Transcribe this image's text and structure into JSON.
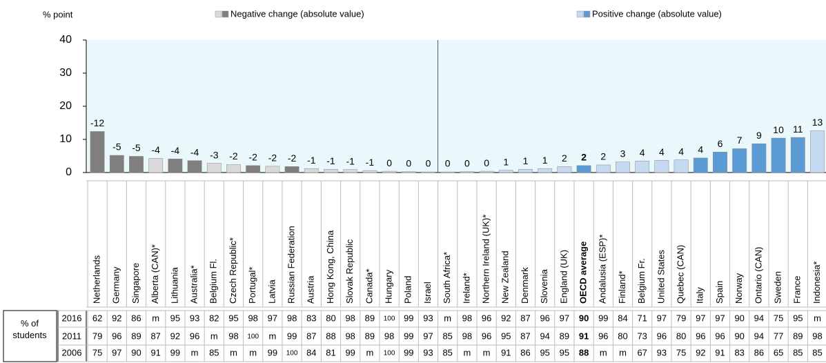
{
  "chart_data": {
    "type": "bar",
    "y_label": "% point",
    "legend": [
      {
        "name": "Negative change (absolute value)",
        "colors": [
          "#d9d9d9",
          "#7f7f7f"
        ]
      },
      {
        "name": "Positive change (absolute value)",
        "colors": [
          "#c5d9f1",
          "#5b9bd5"
        ]
      }
    ],
    "categories": [
      "Netherlands",
      "Germany",
      "Singapore",
      "Alberta (CAN)*",
      "Lithuania",
      "Australia*",
      "Belgium Fl.",
      "Czech Republic*",
      "Portugal*",
      "Latvia",
      "Russian Federation",
      "Austria",
      "Hong Kong, China",
      "Slovak Republic",
      "Canada*",
      "Hungary",
      "Poland",
      "Israel",
      "South Africa*",
      "Ireland*",
      "Northern Ireland (UK)*",
      "New Zealand",
      "Denmark",
      "Slovenia",
      "England (UK)",
      "OECD average",
      "Andalusia (ESP)*",
      "Finland*",
      "Belgium Fr.",
      "United States",
      "Quebec (CAN)",
      "Italy",
      "Spain",
      "Norway",
      "Ontario (CAN)",
      "Sweden",
      "France",
      "Indonesia*"
    ],
    "values": [
      12.4,
      5.2,
      4.9,
      4.3,
      4.1,
      3.6,
      2.8,
      2.4,
      2.1,
      1.9,
      1.8,
      1.2,
      1.0,
      0.9,
      0.6,
      0.4,
      0.3,
      0.2,
      0.2,
      0.3,
      0.4,
      0.7,
      1.0,
      1.2,
      1.8,
      2.1,
      2.3,
      3.2,
      3.5,
      3.7,
      3.8,
      4.4,
      6.2,
      7.2,
      8.7,
      10.4,
      10.6,
      12.6
    ],
    "value_labels": [
      "-12",
      "-5",
      "-5",
      "-4",
      "-4",
      "-4",
      "-3",
      "-2",
      "-2",
      "-2",
      "-2",
      "-1",
      "-1",
      "-1",
      "-1",
      "0",
      "0",
      "0",
      "0",
      "0",
      "0",
      "1",
      "1",
      "1",
      "2",
      "2",
      "2",
      "3",
      "4",
      "4",
      "4",
      "4",
      "6",
      "7",
      "9",
      "10",
      "11",
      "13"
    ],
    "colors": [
      "#7f7f7f",
      "#7f7f7f",
      "#7f7f7f",
      "#d9d9d9",
      "#7f7f7f",
      "#7f7f7f",
      "#d9d9d9",
      "#d9d9d9",
      "#7f7f7f",
      "#d9d9d9",
      "#7f7f7f",
      "#d9d9d9",
      "#d9d9d9",
      "#d9d9d9",
      "#d9d9d9",
      "#d9d9d9",
      "#d9d9d9",
      "#d9d9d9",
      "#c5d9f1",
      "#c5d9f1",
      "#c5d9f1",
      "#c5d9f1",
      "#c5d9f1",
      "#c5d9f1",
      "#c5d9f1",
      "#5b9bd5",
      "#c5d9f1",
      "#c5d9f1",
      "#c5d9f1",
      "#c5d9f1",
      "#c5d9f1",
      "#5b9bd5",
      "#5b9bd5",
      "#5b9bd5",
      "#5b9bd5",
      "#5b9bd5",
      "#5b9bd5",
      "#c5d9f1"
    ],
    "bold_categories": [
      25
    ],
    "divider_after": 17,
    "ylim": [
      0,
      40
    ],
    "yticks": [
      0,
      10,
      20,
      30,
      40
    ],
    "grid": false
  },
  "table": {
    "row_header": "% of students",
    "rows": [
      {
        "year": "2016",
        "cells": [
          62,
          92,
          86,
          "m",
          95,
          93,
          82,
          95,
          98,
          97,
          98,
          83,
          80,
          98,
          89,
          100,
          99,
          93,
          "m",
          98,
          96,
          92,
          87,
          96,
          97,
          90,
          99,
          84,
          71,
          97,
          79,
          97,
          97,
          90,
          94,
          75,
          95,
          "m"
        ]
      },
      {
        "year": "2011",
        "cells": [
          79,
          96,
          89,
          87,
          92,
          96,
          "m",
          98,
          100,
          "m",
          99,
          87,
          88,
          98,
          89,
          98,
          99,
          97,
          85,
          98,
          96,
          95,
          87,
          94,
          89,
          91,
          96,
          80,
          73,
          96,
          80,
          96,
          96,
          90,
          94,
          77,
          89,
          98
        ]
      },
      {
        "year": "2006",
        "cells": [
          75,
          97,
          90,
          91,
          99,
          "m",
          85,
          "m",
          "m",
          99,
          100,
          84,
          81,
          99,
          "m",
          100,
          99,
          93,
          85,
          "m",
          "m",
          91,
          86,
          95,
          95,
          88,
          "m",
          "m",
          67,
          93,
          75,
          92,
          91,
          83,
          86,
          65,
          85,
          85
        ]
      }
    ]
  }
}
